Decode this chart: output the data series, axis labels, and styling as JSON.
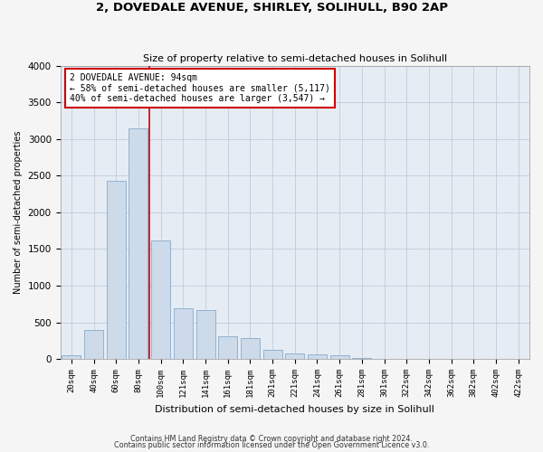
{
  "title": "2, DOVEDALE AVENUE, SHIRLEY, SOLIHULL, B90 2AP",
  "subtitle": "Size of property relative to semi-detached houses in Solihull",
  "xlabel": "Distribution of semi-detached houses by size in Solihull",
  "ylabel": "Number of semi-detached properties",
  "footer1": "Contains HM Land Registry data © Crown copyright and database right 2024.",
  "footer2": "Contains public sector information licensed under the Open Government Licence v3.0.",
  "annotation_title": "2 DOVEDALE AVENUE: 94sqm",
  "annotation_line1": "← 58% of semi-detached houses are smaller (5,117)",
  "annotation_line2": "40% of semi-detached houses are larger (3,547) →",
  "bar_labels": [
    "20sqm",
    "40sqm",
    "60sqm",
    "80sqm",
    "100sqm",
    "121sqm",
    "141sqm",
    "161sqm",
    "181sqm",
    "201sqm",
    "221sqm",
    "241sqm",
    "261sqm",
    "281sqm",
    "301sqm",
    "322sqm",
    "342sqm",
    "362sqm",
    "382sqm",
    "402sqm",
    "422sqm"
  ],
  "bar_values": [
    50,
    400,
    2430,
    3150,
    1620,
    690,
    670,
    310,
    280,
    130,
    80,
    60,
    50,
    10,
    5,
    0,
    0,
    0,
    0,
    0,
    0
  ],
  "bar_color": "#ccdaea",
  "bar_edge_color": "#88aac8",
  "vline_x": 3.5,
  "vline_color": "#cc0000",
  "ylim": [
    0,
    4000
  ],
  "yticks": [
    0,
    500,
    1000,
    1500,
    2000,
    2500,
    3000,
    3500,
    4000
  ],
  "annotation_box_color": "#ffffff",
  "annotation_box_edge": "#cc0000",
  "grid_color": "#c0ccd8",
  "bg_color": "#e6ecf4",
  "fig_bg_color": "#f5f5f5"
}
